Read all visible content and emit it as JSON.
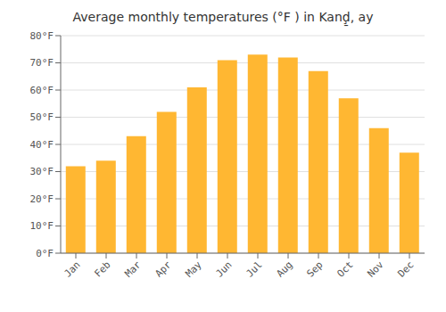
{
  "chart_data": {
    "type": "bar",
    "title": "Average monthly temperatures (°F ) in Kanḑ̱, ay",
    "categories": [
      "Jan",
      "Feb",
      "Mar",
      "Apr",
      "May",
      "Jun",
      "Jul",
      "Aug",
      "Sep",
      "Oct",
      "Nov",
      "Dec"
    ],
    "values": [
      32,
      34,
      43,
      52,
      61,
      71,
      73,
      72,
      67,
      57,
      46,
      37
    ],
    "color": "#FFB732",
    "ylim": [
      0,
      80
    ],
    "yticks": [
      {
        "value": 0,
        "label": "0°F"
      },
      {
        "value": 10,
        "label": "10°F"
      },
      {
        "value": 20,
        "label": "20°F"
      },
      {
        "value": 30,
        "label": "30°F"
      },
      {
        "value": 40,
        "label": "40°F"
      },
      {
        "value": 50,
        "label": "50°F"
      },
      {
        "value": 60,
        "label": "60°F"
      },
      {
        "value": 70,
        "label": "70°F"
      },
      {
        "value": 80,
        "label": "80°F"
      }
    ],
    "grid": true
  }
}
